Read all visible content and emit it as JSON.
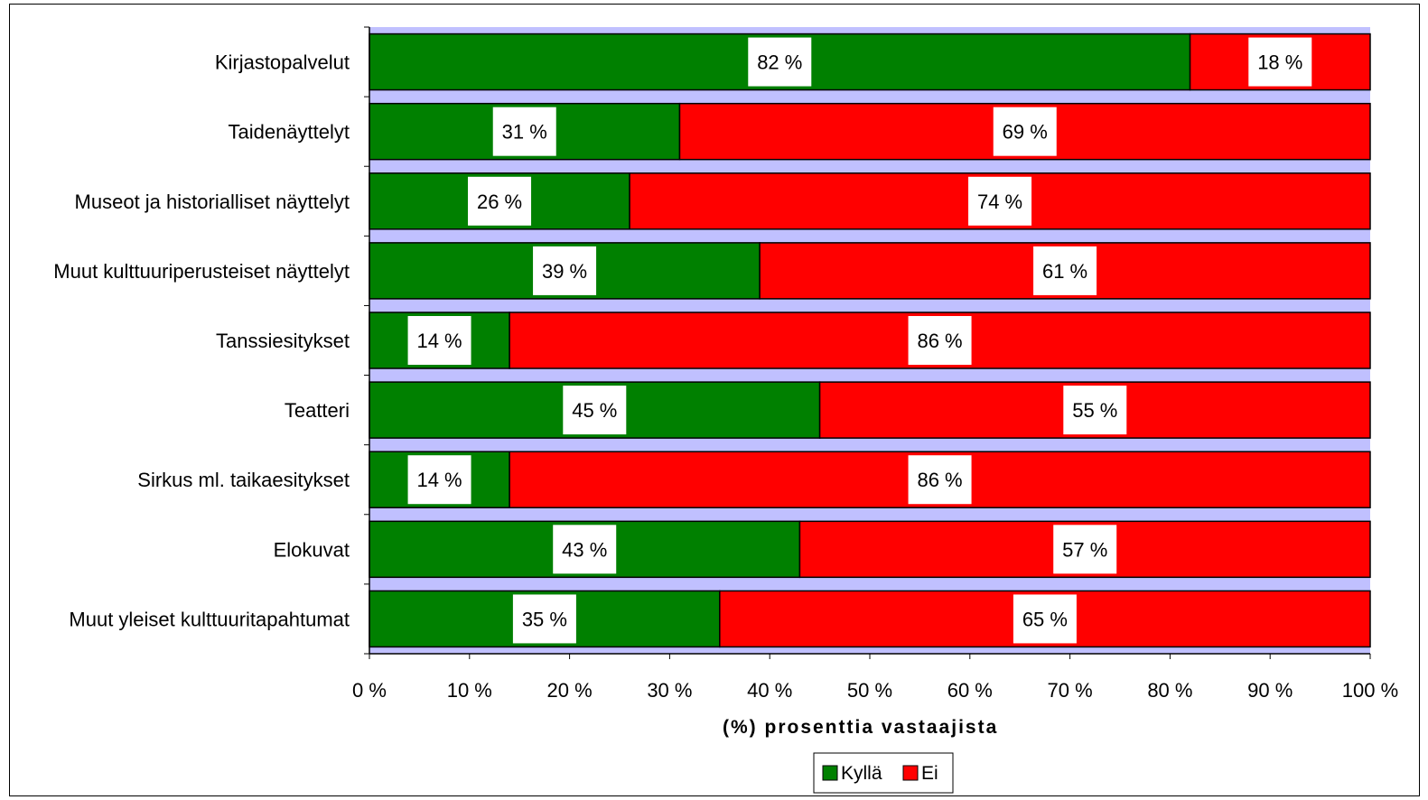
{
  "chart_data": {
    "type": "bar",
    "orientation": "horizontal",
    "stacked": true,
    "categories": [
      "Kirjastopalvelut",
      "Taidenäyttelyt",
      "Museot ja historialliset näyttelyt",
      "Muut kulttuuriperusteiset näyttelyt",
      "Tanssiesitykset",
      "Teatteri",
      "Sirkus ml. taikaesitykset",
      "Elokuvat",
      "Muut yleiset kulttuuritapahtumat"
    ],
    "series": [
      {
        "name": "Kyllä",
        "color": "#008000",
        "values": [
          82,
          31,
          26,
          39,
          14,
          45,
          14,
          43,
          35
        ],
        "labels": [
          "82 %",
          "31 %",
          "26 %",
          "39 %",
          "14 %",
          "45 %",
          "14 %",
          "43 %",
          "35 %"
        ]
      },
      {
        "name": "Ei",
        "color": "#ff0000",
        "values": [
          18,
          69,
          74,
          61,
          86,
          55,
          86,
          57,
          65
        ],
        "labels": [
          "18 %",
          "69 %",
          "74 %",
          "61 %",
          "86 %",
          "55 %",
          "86 %",
          "57 %",
          "65 %"
        ]
      }
    ],
    "xlim": [
      0,
      100
    ],
    "xticks": [
      "0 %",
      "10 %",
      "20 %",
      "30 %",
      "40 %",
      "50 %",
      "60 %",
      "70 %",
      "80 %",
      "90 %",
      "100 %"
    ],
    "xlabel": "(%) prosenttia vastaajista",
    "ylabel": "",
    "title": "",
    "legend_position": "bottom",
    "plot_background": "#c0c0ff",
    "grid": false
  }
}
